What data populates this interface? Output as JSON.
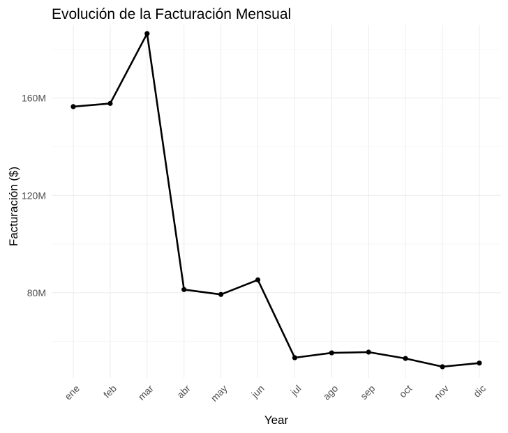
{
  "chart_data": {
    "type": "line",
    "title": "Evolución de la Facturación Mensual",
    "xlabel": "Year",
    "ylabel": "Facturación ($)",
    "categories": [
      "ene",
      "feb",
      "mar",
      "abr",
      "may",
      "jun",
      "jul",
      "ago",
      "sep",
      "oct",
      "nov",
      "dic"
    ],
    "series": [
      {
        "values": [
          156.5,
          157.8,
          186.5,
          81.3,
          79.3,
          85.3,
          53.3,
          55.3,
          55.6,
          53.0,
          49.6,
          51.1
        ]
      }
    ],
    "y_unit_suffix": "M",
    "yticks_labeled": [
      80,
      120,
      160
    ],
    "ylim": [
      45,
      190
    ],
    "grid": true,
    "legend": "none",
    "colors": {
      "line": "#000000",
      "grid_major": "#ebebeb",
      "grid_minor": "#f4f4f4",
      "tick_text": "#4d4d4d",
      "background": "#ffffff"
    }
  }
}
